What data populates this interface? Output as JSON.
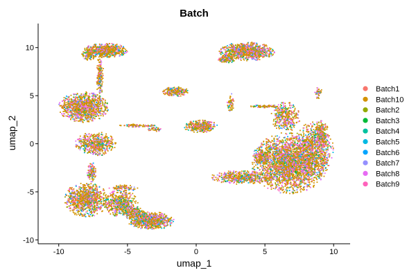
{
  "chart_data": {
    "type": "scatter",
    "title": "Batch",
    "xlabel": "umap_1",
    "ylabel": "umap_2",
    "xlim": [
      -11.5,
      11.2
    ],
    "ylim": [
      -10.4,
      12.5
    ],
    "x_ticks": [
      -10,
      -5,
      0,
      5,
      10
    ],
    "y_ticks": [
      -10,
      -5,
      0,
      5,
      10
    ],
    "x_tick_labels": [
      "-10",
      "-5",
      "0",
      "5",
      "10"
    ],
    "y_tick_labels": [
      "-10",
      "-5",
      "0",
      "5",
      "10"
    ],
    "grid": false,
    "legend_position": "right",
    "series": [
      {
        "name": "Batch1",
        "color": "#F8766D"
      },
      {
        "name": "Batch10",
        "color": "#D39200"
      },
      {
        "name": "Batch2",
        "color": "#93AA00"
      },
      {
        "name": "Batch3",
        "color": "#00BA38"
      },
      {
        "name": "Batch4",
        "color": "#00C19F"
      },
      {
        "name": "Batch5",
        "color": "#00B9E3"
      },
      {
        "name": "Batch6",
        "color": "#00A5FF"
      },
      {
        "name": "Batch7",
        "color": "#9590FF"
      },
      {
        "name": "Batch8",
        "color": "#E76BF3"
      },
      {
        "name": "Batch9",
        "color": "#FF62BC"
      }
    ],
    "clusters": [
      {
        "x": 6.8,
        "y": -2.0,
        "rx": 2.6,
        "ry": 3.0,
        "n": 2600
      },
      {
        "x": 8.6,
        "y": -0.5,
        "rx": 1.3,
        "ry": 2.8,
        "n": 700
      },
      {
        "x": 6.5,
        "y": 2.8,
        "rx": 1.0,
        "ry": 1.5,
        "n": 350
      },
      {
        "x": 9.1,
        "y": 1.0,
        "rx": 0.5,
        "ry": 1.3,
        "n": 200
      },
      {
        "x": 8.9,
        "y": 5.3,
        "rx": 0.25,
        "ry": 0.6,
        "n": 40
      },
      {
        "x": 3.4,
        "y": -3.5,
        "rx": 2.2,
        "ry": 0.7,
        "n": 500
      },
      {
        "x": 3.7,
        "y": 9.6,
        "rx": 1.9,
        "ry": 0.9,
        "n": 900
      },
      {
        "x": 2.2,
        "y": 8.8,
        "rx": 0.6,
        "ry": 0.4,
        "n": 120
      },
      {
        "x": -8.2,
        "y": 3.8,
        "rx": 1.7,
        "ry": 1.5,
        "n": 1100
      },
      {
        "x": -6.6,
        "y": 9.7,
        "rx": 1.5,
        "ry": 0.7,
        "n": 650
      },
      {
        "x": -7.8,
        "y": 9.2,
        "rx": 0.5,
        "ry": 0.5,
        "n": 100
      },
      {
        "x": -7.3,
        "y": 0.0,
        "rx": 1.4,
        "ry": 1.2,
        "n": 550
      },
      {
        "x": -8.0,
        "y": -5.8,
        "rx": 1.5,
        "ry": 1.7,
        "n": 900
      },
      {
        "x": -5.5,
        "y": -6.2,
        "rx": 1.2,
        "ry": 1.3,
        "n": 500
      },
      {
        "x": -3.3,
        "y": -8.0,
        "rx": 1.6,
        "ry": 0.9,
        "n": 800
      },
      {
        "x": -4.6,
        "y": -7.2,
        "rx": 0.8,
        "ry": 0.6,
        "n": 200
      },
      {
        "x": -1.5,
        "y": 5.4,
        "rx": 0.9,
        "ry": 0.5,
        "n": 220
      },
      {
        "x": 0.3,
        "y": 1.8,
        "rx": 1.2,
        "ry": 0.6,
        "n": 350
      },
      {
        "x": -7.0,
        "y": 7.0,
        "rx": 0.25,
        "ry": 2.0,
        "n": 200
      },
      {
        "x": -7.6,
        "y": -3.0,
        "rx": 0.3,
        "ry": 1.0,
        "n": 120
      },
      {
        "x": -5.3,
        "y": -4.6,
        "rx": 1.0,
        "ry": 0.3,
        "n": 90
      },
      {
        "x": 5.0,
        "y": 3.9,
        "rx": 1.0,
        "ry": 0.15,
        "n": 80
      },
      {
        "x": 4.8,
        "y": -1.5,
        "rx": 0.6,
        "ry": 0.6,
        "n": 150
      },
      {
        "x": -4.2,
        "y": 1.9,
        "rx": 1.3,
        "ry": 0.15,
        "n": 90
      },
      {
        "x": 2.5,
        "y": 4.2,
        "rx": 0.25,
        "ry": 1.0,
        "n": 60
      },
      {
        "x": -3.0,
        "y": 1.5,
        "rx": 0.6,
        "ry": 0.2,
        "n": 40
      }
    ]
  }
}
